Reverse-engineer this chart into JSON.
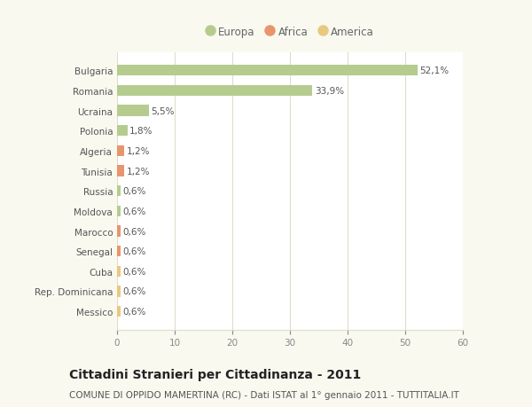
{
  "categories": [
    "Bulgaria",
    "Romania",
    "Ucraina",
    "Polonia",
    "Algeria",
    "Tunisia",
    "Russia",
    "Moldova",
    "Marocco",
    "Senegal",
    "Cuba",
    "Rep. Dominicana",
    "Messico"
  ],
  "values": [
    52.1,
    33.9,
    5.5,
    1.8,
    1.2,
    1.2,
    0.6,
    0.6,
    0.6,
    0.6,
    0.6,
    0.6,
    0.6
  ],
  "labels": [
    "52,1%",
    "33,9%",
    "5,5%",
    "1,8%",
    "1,2%",
    "1,2%",
    "0,6%",
    "0,6%",
    "0,6%",
    "0,6%",
    "0,6%",
    "0,6%",
    "0,6%"
  ],
  "colors": [
    "#b5cc8e",
    "#b5cc8e",
    "#b5cc8e",
    "#b5cc8e",
    "#e8956d",
    "#e8956d",
    "#b5cc8e",
    "#b5cc8e",
    "#e8956d",
    "#e8956d",
    "#e8c97e",
    "#e8c97e",
    "#e8c97e"
  ],
  "legend": [
    {
      "label": "Europa",
      "color": "#b5cc8e"
    },
    {
      "label": "Africa",
      "color": "#e8956d"
    },
    {
      "label": "America",
      "color": "#e8c97e"
    }
  ],
  "xlim": [
    0,
    60
  ],
  "xticks": [
    0,
    10,
    20,
    30,
    40,
    50,
    60
  ],
  "title": "Cittadini Stranieri per Cittadinanza - 2011",
  "subtitle": "COMUNE DI OPPIDO MAMERTINA (RC) - Dati ISTAT al 1° gennaio 2011 - TUTTITALIA.IT",
  "bg_color": "#f9f9f0",
  "plot_bg_color": "#ffffff",
  "grid_color": "#ddddcc",
  "bar_height": 0.55,
  "title_fontsize": 10,
  "subtitle_fontsize": 7.5,
  "tick_fontsize": 7.5,
  "label_fontsize": 7.5,
  "legend_fontsize": 8.5
}
